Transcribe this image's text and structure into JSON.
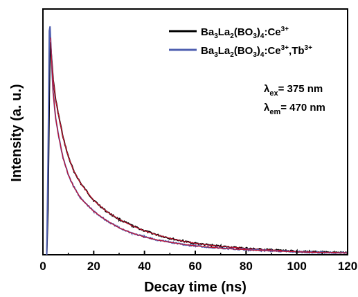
{
  "chart_data": {
    "type": "line",
    "xlabel": "Decay time (ns)",
    "ylabel": "Intensity (a. u.)",
    "xlim": [
      0,
      120
    ],
    "ylim": [
      0,
      1.0
    ],
    "x_ticks": [
      0,
      20,
      40,
      60,
      80,
      100,
      120
    ],
    "y_ticks": [],
    "grid": false,
    "legend_position": "top-right",
    "series": [
      {
        "name": "Ba3La2(BO3)4:Ce3+",
        "color": "#000000",
        "fit_color": "#c8102e",
        "x": [
          1.5,
          2.0,
          2.5,
          2.8,
          3.0,
          4.0,
          5.0,
          6.0,
          8.0,
          10.0,
          12.0,
          15.0,
          20.0,
          25.0,
          30.0,
          35.0,
          40.0,
          45.0,
          50.0,
          55.0,
          60.0,
          65.0,
          70.0,
          75.0,
          80.0,
          85.0,
          90.0,
          95.0,
          100.0,
          105.0,
          110.0,
          115.0,
          120.0
        ],
        "y": [
          0.0,
          0.2,
          0.7,
          0.9,
          0.93,
          0.77,
          0.68,
          0.62,
          0.51,
          0.43,
          0.37,
          0.31,
          0.238,
          0.19,
          0.155,
          0.128,
          0.105,
          0.087,
          0.072,
          0.06,
          0.05,
          0.043,
          0.037,
          0.032,
          0.028,
          0.024,
          0.021,
          0.018,
          0.015,
          0.013,
          0.011,
          0.01,
          0.009
        ]
      },
      {
        "name": "Ba3La2(BO3)4:Ce3+,Tb3+",
        "color": "#4f5fb0",
        "fit_color": "#c8102e",
        "x": [
          1.5,
          2.0,
          2.5,
          2.8,
          3.0,
          4.0,
          5.0,
          6.0,
          8.0,
          10.0,
          12.0,
          15.0,
          20.0,
          25.0,
          30.0,
          35.0,
          40.0,
          45.0,
          50.0,
          55.0,
          60.0,
          65.0,
          70.0,
          75.0,
          80.0,
          85.0,
          90.0,
          95.0,
          100.0,
          105.0,
          110.0,
          115.0,
          120.0
        ],
        "y": [
          0.0,
          0.4,
          0.98,
          1.0,
          0.95,
          0.71,
          0.6,
          0.53,
          0.42,
          0.35,
          0.3,
          0.245,
          0.19,
          0.15,
          0.118,
          0.095,
          0.078,
          0.065,
          0.055,
          0.046,
          0.039,
          0.034,
          0.029,
          0.025,
          0.022,
          0.019,
          0.017,
          0.015,
          0.013,
          0.011,
          0.01,
          0.009,
          0.008
        ]
      }
    ],
    "annotations": {
      "ex_lambda": "λ",
      "ex_sub": "ex",
      "ex_value": "= 375 nm",
      "em_lambda": "λ",
      "em_sub": "em",
      "em_value": "= 470 nm"
    },
    "legend_parts": [
      {
        "t": "Ba",
        "s": "",
        "b": "3"
      },
      {
        "t": "La",
        "s": "",
        "b": "2"
      },
      {
        "t": "(BO",
        "s": "",
        "b": "3"
      },
      {
        "t": ")",
        "s": "",
        "b": "4"
      },
      {
        "t": ":Ce",
        "s": "3+",
        "b": ""
      }
    ],
    "legend_parts_2": [
      {
        "t": "Ba",
        "s": "",
        "b": "3"
      },
      {
        "t": "La",
        "s": "",
        "b": "2"
      },
      {
        "t": "(BO",
        "s": "",
        "b": "3"
      },
      {
        "t": ")",
        "s": "",
        "b": "4"
      },
      {
        "t": ":Ce",
        "s": "3+",
        "b": ""
      },
      {
        "t": ",Tb",
        "s": "3+",
        "b": ""
      }
    ]
  }
}
